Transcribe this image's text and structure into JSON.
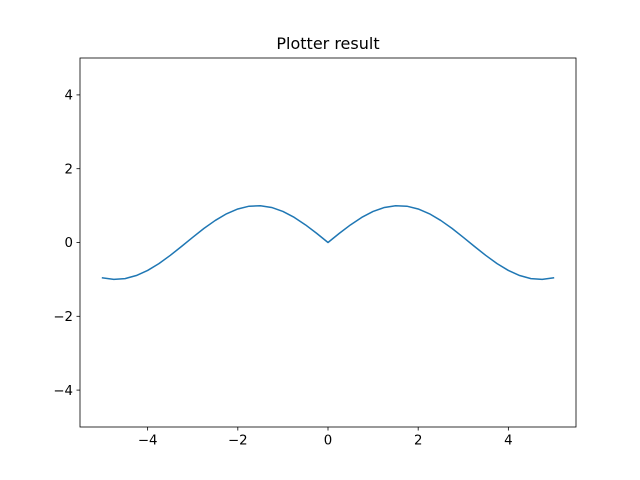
{
  "chart_data": {
    "type": "line",
    "title": "Plotter result",
    "xlabel": "",
    "ylabel": "",
    "xlim": [
      -5.5,
      5.5
    ],
    "ylim": [
      -5,
      5
    ],
    "xticks": [
      -4,
      -2,
      0,
      2,
      4
    ],
    "yticks": [
      -4,
      -2,
      0,
      2,
      4
    ],
    "xtick_labels": [
      "−4",
      "−2",
      "0",
      "2",
      "4"
    ],
    "ytick_labels": [
      "−4",
      "−2",
      "0",
      "2",
      "4"
    ],
    "grid": false,
    "line_color": "#1f77b4",
    "series": [
      {
        "x": [
          -5.0,
          -4.75,
          -4.5,
          -4.25,
          -4.0,
          -3.75,
          -3.5,
          -3.25,
          -3.0,
          -2.75,
          -2.5,
          -2.25,
          -2.0,
          -1.75,
          -1.5,
          -1.25,
          -1.0,
          -0.75,
          -0.5,
          -0.25,
          0.0,
          0.25,
          0.5,
          0.75,
          1.0,
          1.25,
          1.5,
          1.75,
          2.0,
          2.25,
          2.5,
          2.75,
          3.0,
          3.25,
          3.5,
          3.75,
          4.0,
          4.25,
          4.5,
          4.75,
          5.0
        ],
        "y": [
          -0.959,
          -0.999,
          -0.978,
          -0.895,
          -0.757,
          -0.572,
          -0.351,
          -0.108,
          0.141,
          0.382,
          0.598,
          0.778,
          0.909,
          0.984,
          0.997,
          0.949,
          0.841,
          0.682,
          0.479,
          0.247,
          0.0,
          0.247,
          0.479,
          0.682,
          0.841,
          0.949,
          0.997,
          0.984,
          0.909,
          0.778,
          0.598,
          0.382,
          0.141,
          -0.108,
          -0.351,
          -0.572,
          -0.757,
          -0.895,
          -0.978,
          -0.999,
          -0.959
        ]
      }
    ]
  }
}
